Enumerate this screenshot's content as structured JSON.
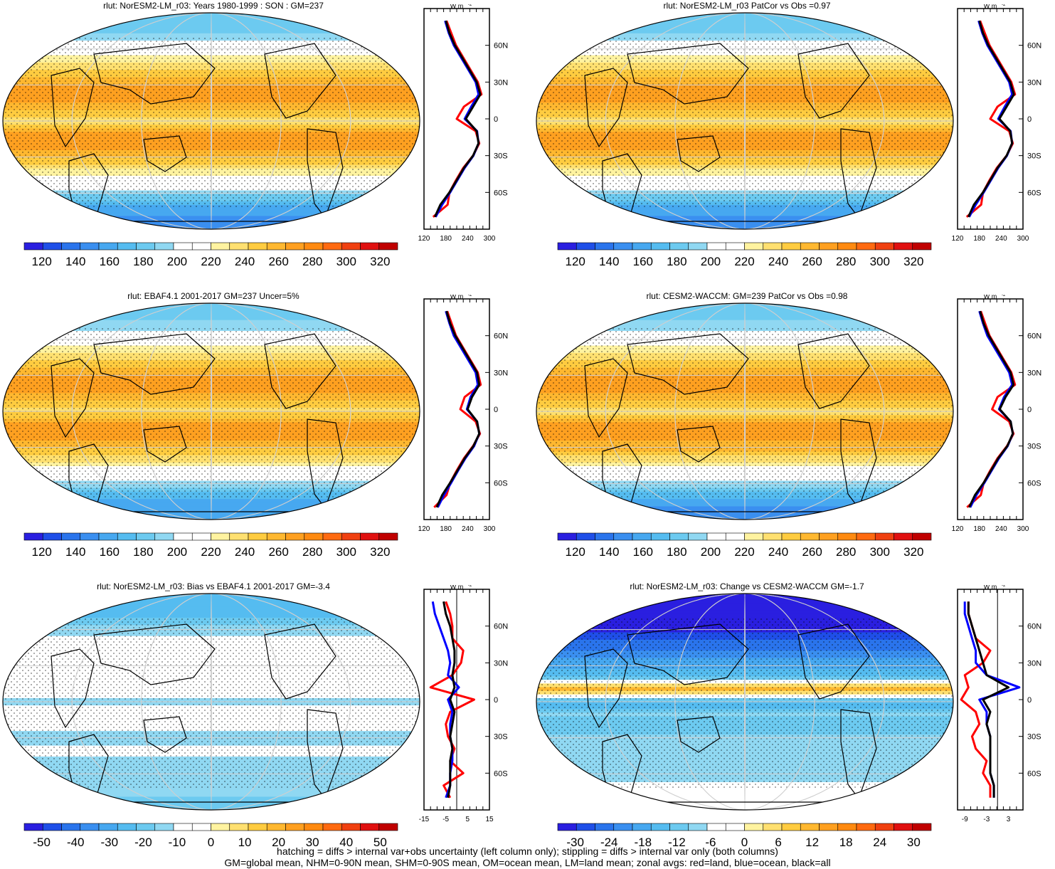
{
  "footer": {
    "line1": "hatching = diffs > internal var+obs uncertainty (left column only); stippling = diffs > internal var only (both columns)",
    "line2": "GM=global mean, NHM=0-90N mean, SHM=0-90S mean, OM=ocean mean, LM=land mean; zonal avgs: red=land, blue=ocean, black=all"
  },
  "colors": {
    "land": "#ff0000",
    "ocean": "#0000ff",
    "all": "#000000",
    "abs_palette": [
      "#2a1fe0",
      "#1f4fe8",
      "#2a74ec",
      "#3a8ff0",
      "#47a8f0",
      "#55bcf0",
      "#6ccaf0",
      "#90d8f2",
      "#ffffff",
      "#ffffff",
      "#fff3a0",
      "#ffe070",
      "#ffcc40",
      "#ffb830",
      "#ffa020",
      "#ff8a10",
      "#ff6a10",
      "#f04010",
      "#e01010",
      "#c00000"
    ],
    "diff_palette": [
      "#2a1fe0",
      "#1f4fe8",
      "#2a74ec",
      "#3a8ff0",
      "#47a8f0",
      "#55bcf0",
      "#6ccaf0",
      "#90d8f2",
      "#ffffff",
      "#ffffff",
      "#fff3a0",
      "#ffe070",
      "#ffcc40",
      "#ffb830",
      "#ffa020",
      "#ff8a10",
      "#ff6a10",
      "#f04010",
      "#e01010",
      "#c00000"
    ]
  },
  "chart_data": [
    {
      "type": "heatmap",
      "title": "rlut: NorESM2-LM_r03: Years 1980-1999 : SON : GM=237",
      "colorbar_ticks": [
        "120",
        "140",
        "160",
        "180",
        "200",
        "220",
        "240",
        "260",
        "280",
        "300",
        "320"
      ],
      "zonal": {
        "unit_label": "W m",
        "xlim": [
          120,
          300
        ],
        "x_ticks": [
          "120",
          "180",
          "240",
          "300"
        ],
        "lat_ticks": [
          "60N",
          "30N",
          "0",
          "30S",
          "60S"
        ],
        "lat": [
          -80,
          -70,
          -60,
          -50,
          -40,
          -30,
          -20,
          -10,
          0,
          10,
          20,
          30,
          40,
          50,
          60,
          70,
          80
        ],
        "series": [
          {
            "key": "all",
            "values": [
              150,
              165,
              190,
              210,
              230,
              255,
              270,
              265,
              235,
              255,
              275,
              265,
              245,
              225,
              205,
              190,
              180
            ]
          },
          {
            "key": "ocean",
            "values": [
              152,
              170,
              192,
              212,
              232,
              256,
              270,
              266,
              232,
              250,
              270,
              262,
              242,
              222,
              202,
              188,
              178
            ]
          },
          {
            "key": "land",
            "values": [
              145,
              185,
              190,
              208,
              228,
              255,
              272,
              262,
              210,
              230,
              278,
              268,
              248,
              228,
              208,
              195,
              182
            ]
          }
        ]
      }
    },
    {
      "type": "heatmap",
      "title": "rlut: NorESM2-LM_r03 PatCor vs Obs =0.97",
      "colorbar_ticks": [
        "120",
        "140",
        "160",
        "180",
        "200",
        "220",
        "240",
        "260",
        "280",
        "300",
        "320"
      ],
      "zonal": {
        "unit_label": "W m",
        "xlim": [
          120,
          300
        ],
        "x_ticks": [
          "120",
          "180",
          "240",
          "300"
        ],
        "lat_ticks": [
          "60N",
          "30N",
          "0",
          "30S",
          "60S"
        ],
        "lat": [
          -80,
          -70,
          -60,
          -50,
          -40,
          -30,
          -20,
          -10,
          0,
          10,
          20,
          30,
          40,
          50,
          60,
          70,
          80
        ],
        "series": [
          {
            "key": "all",
            "values": [
              150,
              165,
              190,
              210,
              230,
              255,
              270,
              265,
              235,
              255,
              275,
              265,
              245,
              225,
              205,
              190,
              180
            ]
          },
          {
            "key": "ocean",
            "values": [
              152,
              170,
              192,
              212,
              232,
              256,
              270,
              266,
              232,
              250,
              270,
              262,
              242,
              222,
              202,
              188,
              178
            ]
          },
          {
            "key": "land",
            "values": [
              145,
              185,
              190,
              208,
              228,
              255,
              272,
              262,
              210,
              230,
              278,
              268,
              248,
              228,
              208,
              195,
              182
            ]
          }
        ]
      }
    },
    {
      "type": "heatmap",
      "title": "rlut: EBAF4.1 2001-2017 GM=237 Uncer=5%",
      "colorbar_ticks": [
        "120",
        "140",
        "160",
        "180",
        "200",
        "220",
        "240",
        "260",
        "280",
        "300",
        "320"
      ],
      "zonal": {
        "unit_label": "W m",
        "xlim": [
          120,
          300
        ],
        "x_ticks": [
          "120",
          "180",
          "240",
          "300"
        ],
        "lat_ticks": [
          "60N",
          "30N",
          "0",
          "30S",
          "60S"
        ],
        "lat": [
          -80,
          -70,
          -60,
          -50,
          -40,
          -30,
          -20,
          -10,
          0,
          10,
          20,
          30,
          40,
          50,
          60,
          70,
          80
        ],
        "series": [
          {
            "key": "all",
            "values": [
              155,
              170,
              192,
              212,
              232,
              256,
              272,
              266,
              240,
              252,
              272,
              266,
              246,
              226,
              206,
              192,
              182
            ]
          },
          {
            "key": "ocean",
            "values": [
              158,
              175,
              195,
              214,
              234,
              258,
              272,
              266,
              238,
              248,
              268,
              262,
              242,
              222,
              202,
              190,
              180
            ]
          },
          {
            "key": "land",
            "values": [
              148,
              182,
              192,
              210,
              230,
              255,
              274,
              262,
              220,
              232,
              276,
              268,
              248,
              228,
              208,
              196,
              184
            ]
          }
        ]
      }
    },
    {
      "type": "heatmap",
      "title": "rlut: CESM2-WACCM: GM=239 PatCor vs Obs =0.98",
      "colorbar_ticks": [
        "120",
        "140",
        "160",
        "180",
        "200",
        "220",
        "240",
        "260",
        "280",
        "300",
        "320"
      ],
      "zonal": {
        "unit_label": "W m",
        "xlim": [
          120,
          300
        ],
        "x_ticks": [
          "120",
          "180",
          "240",
          "300"
        ],
        "lat_ticks": [
          "60N",
          "30N",
          "0",
          "30S",
          "60S"
        ],
        "lat": [
          -80,
          -70,
          -60,
          -50,
          -40,
          -30,
          -20,
          -10,
          0,
          10,
          20,
          30,
          40,
          50,
          60,
          70,
          80
        ],
        "series": [
          {
            "key": "all",
            "values": [
              152,
              168,
              192,
              212,
              232,
              257,
              272,
              266,
              236,
              252,
              274,
              266,
              246,
              226,
              206,
              192,
              182
            ]
          },
          {
            "key": "ocean",
            "values": [
              155,
              172,
              194,
              214,
              234,
              258,
              272,
              266,
              234,
              248,
              270,
              262,
              242,
              222,
              202,
              190,
              180
            ]
          },
          {
            "key": "land",
            "values": [
              146,
              184,
              192,
              210,
              230,
              256,
              274,
              262,
              215,
              230,
              278,
              268,
              248,
              228,
              208,
              196,
              184
            ]
          }
        ]
      }
    },
    {
      "type": "heatmap",
      "title": "rlut: NorESM2-LM_r03: Bias vs EBAF4.1 2001-2017  GM=-3.4",
      "colorbar_ticks": [
        "-50",
        "-40",
        "-30",
        "-20",
        "-10",
        "0",
        "10",
        "20",
        "30",
        "40",
        "50"
      ],
      "zonal": {
        "unit_label": "W m",
        "xlim": [
          -15,
          15
        ],
        "x_ticks": [
          "-15",
          "-5",
          "5",
          "15"
        ],
        "lat_ticks": [
          "60N",
          "30N",
          "0",
          "30S",
          "60S"
        ],
        "zero_line": 0,
        "lat": [
          -80,
          -70,
          -60,
          -50,
          -40,
          -30,
          -20,
          -10,
          0,
          10,
          20,
          30,
          40,
          50,
          60,
          70,
          80
        ],
        "series": [
          {
            "key": "all",
            "values": [
              -4,
              -3,
              -3,
              -3,
              -2,
              -3,
              -2,
              -1,
              -3,
              -1,
              -2,
              -1,
              -1,
              -2,
              -3,
              -5,
              -6
            ]
          },
          {
            "key": "ocean",
            "values": [
              -5,
              -3,
              -3,
              -2,
              -2,
              -3,
              -3,
              -2,
              -4,
              1,
              -4,
              -3,
              -4,
              -6,
              -8,
              -10,
              -11
            ]
          },
          {
            "key": "land",
            "values": [
              -3,
              -6,
              3,
              -3,
              -1,
              -4,
              -5,
              -3,
              8,
              -12,
              -2,
              2,
              3,
              -2,
              -2,
              -3,
              -5
            ]
          }
        ]
      }
    },
    {
      "type": "heatmap",
      "title": "rlut: NorESM2-LM_r03: Change vs CESM2-WACCM GM=-1.7",
      "colorbar_ticks": [
        "-30",
        "-24",
        "-18",
        "-12",
        "-6",
        "0",
        "6",
        "12",
        "18",
        "24",
        "30"
      ],
      "zonal": {
        "unit_label": "W m",
        "xlim": [
          -11,
          7
        ],
        "x_ticks": [
          "-9",
          "-3",
          "3"
        ],
        "lat_ticks": [
          "60N",
          "30N",
          "0",
          "30S",
          "60S"
        ],
        "zero_line": 0,
        "lat": [
          -80,
          -70,
          -60,
          -50,
          -40,
          -30,
          -20,
          -10,
          0,
          10,
          20,
          30,
          40,
          50,
          60,
          70,
          80
        ],
        "series": [
          {
            "key": "all",
            "values": [
              -1,
              -1,
              -2,
              -2,
              -2,
              -2,
              -3,
              -2,
              -4,
              3,
              -3,
              -4,
              -5,
              -6,
              -7,
              -8,
              -8
            ]
          },
          {
            "key": "ocean",
            "values": [
              -1,
              -1,
              -2,
              -2,
              -2,
              -2,
              -3,
              -3,
              -5,
              6,
              -3,
              -6,
              -6,
              -7,
              -8,
              -9,
              -9
            ]
          },
          {
            "key": "land",
            "values": [
              -2,
              -2,
              -4,
              -3,
              -6,
              -7,
              -5,
              -6,
              -10,
              -8,
              -9,
              -4,
              -2,
              -6,
              -7,
              -8,
              -8
            ]
          }
        ]
      }
    }
  ]
}
